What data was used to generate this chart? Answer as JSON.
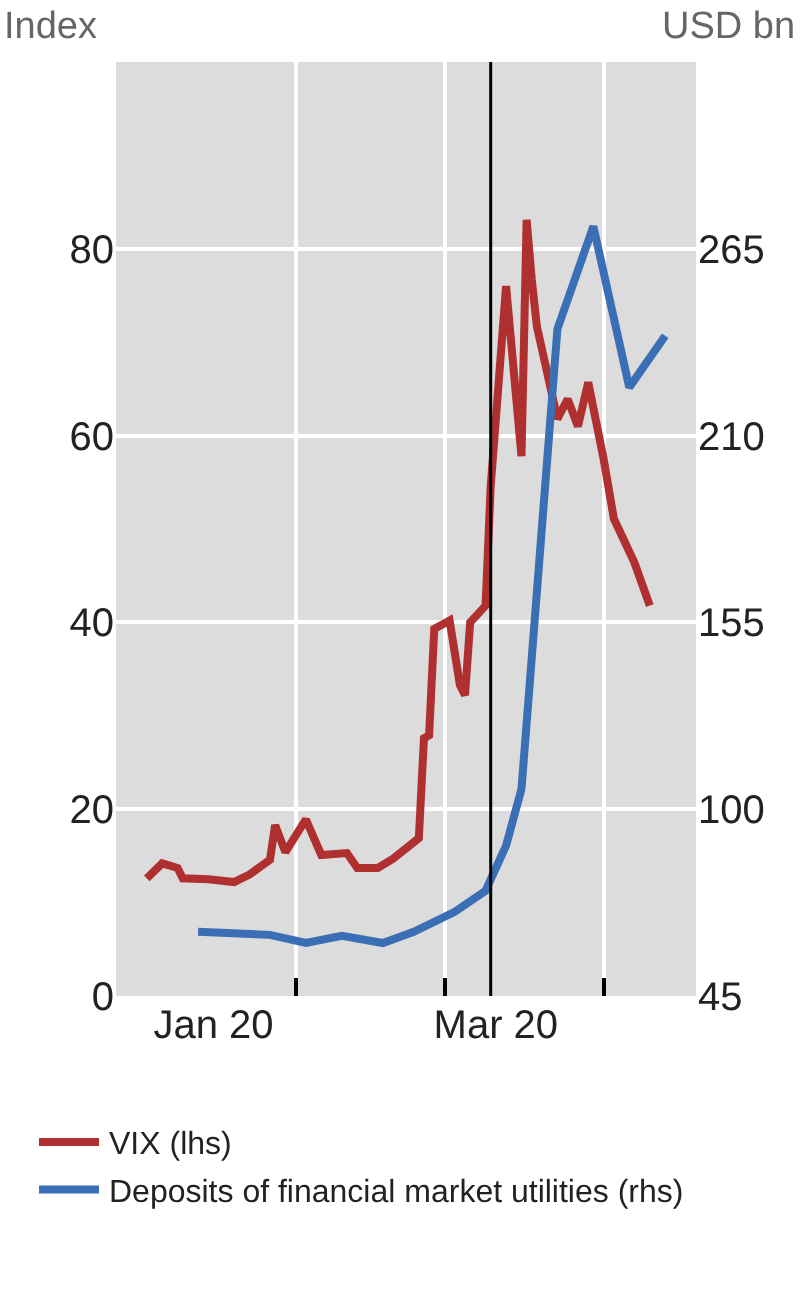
{
  "chart_data": {
    "type": "line",
    "ylabel": "Index",
    "y2label": "USD bn",
    "xlim": [
      "2019-12-28",
      "2020-04-19"
    ],
    "xticks": [
      {
        "value": "2020-01-16",
        "label": "Jan 20"
      },
      {
        "value": "2020-02-01",
        "label": null
      },
      {
        "value": "2020-03-01",
        "label": null
      },
      {
        "value": "2020-03-11",
        "label": "Mar 20"
      },
      {
        "value": "2020-04-01",
        "label": null
      }
    ],
    "ylim": [
      0,
      100
    ],
    "yticks": [
      0,
      20,
      40,
      60,
      80
    ],
    "y2lim": [
      45,
      320
    ],
    "y2ticks": [
      45,
      100,
      155,
      210,
      265
    ],
    "grid": true,
    "legend": "bottom",
    "marker": "none",
    "line_style": "solid",
    "ref_lines": [
      {
        "axis": "x",
        "value": "2020-03-10",
        "label": null,
        "color": "#000000"
      }
    ],
    "series": [
      {
        "name": "VIX (lhs)",
        "color": "#b03030",
        "x": [
          "2020-01-03",
          "2020-01-06",
          "2020-01-09",
          "2020-01-10",
          "2020-01-15",
          "2020-01-20",
          "2020-01-23",
          "2020-01-27",
          "2020-01-28",
          "2020-01-30",
          "2020-02-03",
          "2020-02-06",
          "2020-02-11",
          "2020-02-13",
          "2020-02-17",
          "2020-02-20",
          "2020-02-25",
          "2020-02-26",
          "2020-02-27",
          "2020-02-28",
          "2020-03-02",
          "2020-03-04",
          "2020-03-05",
          "2020-03-06",
          "2020-03-09",
          "2020-03-10",
          "2020-03-13",
          "2020-03-16",
          "2020-03-17",
          "2020-03-18",
          "2020-03-19",
          "2020-03-23",
          "2020-03-25",
          "2020-03-27",
          "2020-03-29",
          "2020-04-01",
          "2020-04-03",
          "2020-04-07",
          "2020-04-10"
        ],
        "values": [
          12.6,
          14.2,
          13.7,
          12.6,
          12.5,
          12.2,
          13,
          14.6,
          18.3,
          15.4,
          18.9,
          15.1,
          15.3,
          13.7,
          13.7,
          14.7,
          16.9,
          27.6,
          27.9,
          39.3,
          40.2,
          33.3,
          32.2,
          40,
          41.8,
          54.6,
          76,
          57.8,
          83.1,
          76.7,
          71.7,
          61.8,
          63.9,
          61,
          65.7,
          57.5,
          51.1,
          46.4,
          41.8
        ]
      },
      {
        "name": "Deposits of financial market utilities (rhs)",
        "color": "#3a6fb5",
        "axis": "y2",
        "x": [
          "2020-01-13",
          "2020-01-27",
          "2020-02-03",
          "2020-02-10",
          "2020-02-18",
          "2020-02-24",
          "2020-03-03",
          "2020-03-09",
          "2020-03-13",
          "2020-03-16",
          "2020-03-23",
          "2020-03-30",
          "2020-04-06",
          "2020-04-13"
        ],
        "values": [
          63.9,
          63,
          60.6,
          62.7,
          60.6,
          63.9,
          69.8,
          76,
          89.3,
          105.9,
          241.4,
          271.6,
          224.2,
          239.4
        ]
      }
    ]
  }
}
